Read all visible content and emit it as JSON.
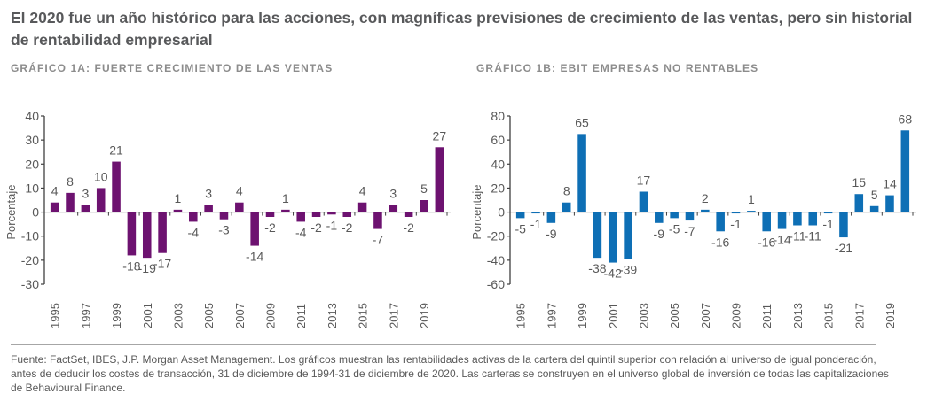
{
  "title": "El 2020 fue un año histórico para las acciones, con magníficas previsiones de crecimiento de las ventas, pero sin historial de rentabilidad empresarial",
  "footnote": "Fuente: FactSet, IBES, J.P. Morgan Asset Management. Los gráficos muestran las rentabilidades activas de la cartera del quintil superior con relación al universo de igual ponderación, antes de deducir los costes de transacción, 31 de diciembre de 1994-31 de diciembre de 2020. Las carteras se construyen en el universo global de inversión de todas las capitalizaciones de Behavioural Finance.",
  "chart_data": [
    {
      "type": "bar",
      "title": "GRÁFICO 1A: FUERTE CRECIMIENTO DE LAS VENTAS",
      "xlabel": "",
      "ylabel": "Porcentaje",
      "ylim": [
        -30,
        40
      ],
      "yticks": [
        40,
        30,
        20,
        10,
        0,
        -10,
        -20,
        -30
      ],
      "color": "#6d1270",
      "categories": [
        "1995",
        "1996",
        "1997",
        "1998",
        "1999",
        "2000",
        "2001",
        "2002",
        "2003",
        "2004",
        "2005",
        "2006",
        "2007",
        "2008",
        "2009",
        "2010",
        "2011",
        "2012",
        "2013",
        "2014",
        "2015",
        "2016",
        "2017",
        "2018",
        "2019",
        "2020"
      ],
      "xtick_labels": [
        "1995",
        "1997",
        "1999",
        "2001",
        "2003",
        "2005",
        "2007",
        "2009",
        "2011",
        "2013",
        "2015",
        "2017",
        "2019"
      ],
      "values": [
        4,
        8,
        3,
        10,
        21,
        -18,
        -19,
        -17,
        1,
        -4,
        3,
        -3,
        4,
        -14,
        -2,
        1,
        -4,
        -2,
        -1,
        -2,
        4,
        -7,
        3,
        -2,
        5,
        27
      ],
      "data_labels": [
        "4",
        "8",
        "3",
        "10",
        "21",
        "-18",
        "-19",
        "-17",
        "1",
        "-4",
        "3",
        "-3",
        "4",
        "-14",
        "-2",
        "1",
        "-4",
        "-2",
        "-1",
        "-2",
        "4",
        "-7",
        "3",
        "-2",
        "5",
        "27"
      ],
      "grid": false
    },
    {
      "type": "bar",
      "title": "GRÁFICO 1B: EBIT EMPRESAS NO RENTABLES",
      "xlabel": "",
      "ylabel": "Porcentaje",
      "ylim": [
        -60,
        80
      ],
      "yticks": [
        80,
        60,
        40,
        20,
        0,
        -20,
        -40,
        -60
      ],
      "color": "#0e6fb5",
      "categories": [
        "1995",
        "1996",
        "1997",
        "1998",
        "1999",
        "2000",
        "2001",
        "2002",
        "2003",
        "2004",
        "2005",
        "2006",
        "2007",
        "2008",
        "2009",
        "2010",
        "2011",
        "2012",
        "2013",
        "2014",
        "2015",
        "2016",
        "2017",
        "2018",
        "2019",
        "2020"
      ],
      "xtick_labels": [
        "1995",
        "1997",
        "1999",
        "2001",
        "2003",
        "2005",
        "2007",
        "2009",
        "2011",
        "2013",
        "2015",
        "2017",
        "2019"
      ],
      "values": [
        -5,
        -1,
        -9,
        8,
        65,
        -38,
        -42,
        -39,
        17,
        -9,
        -5,
        -7,
        2,
        -16,
        -1,
        1,
        -16,
        -14,
        -11,
        -11,
        -1,
        -21,
        15,
        5,
        14,
        68
      ],
      "data_labels": [
        "-5",
        "-1",
        "-9",
        "8",
        "65",
        "-38",
        "-42",
        "-39",
        "17",
        "-9",
        "-5",
        "-7",
        "2",
        "-16",
        "-1",
        "1",
        "-16",
        "-14",
        "-11",
        "-11",
        "-1",
        "-21",
        "15",
        "5",
        "14",
        "68"
      ],
      "grid": false
    }
  ]
}
